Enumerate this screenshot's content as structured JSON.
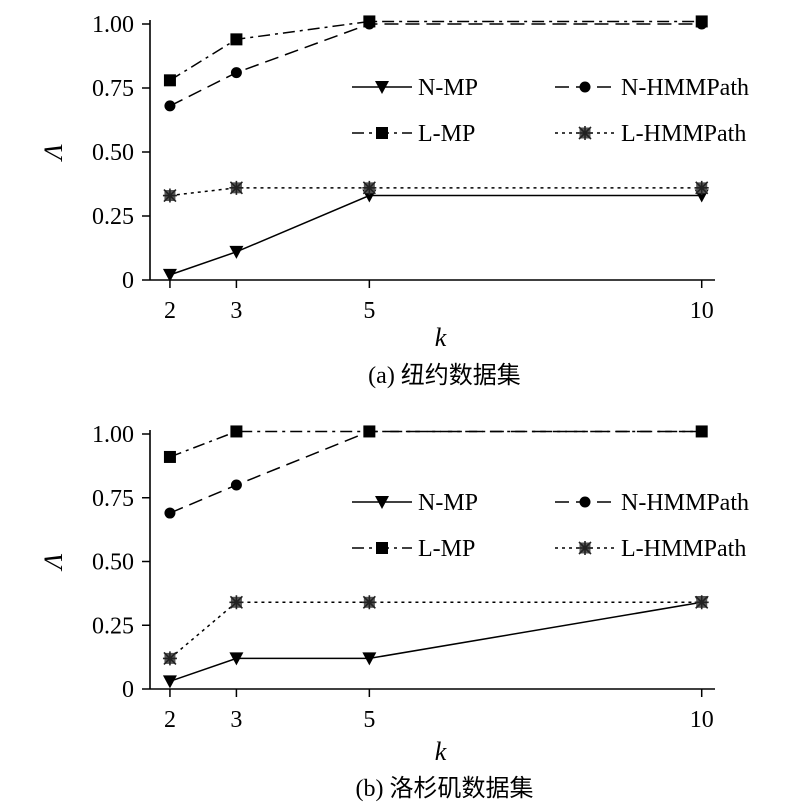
{
  "chart_data": [
    {
      "type": "line",
      "caption": "(a) 纽约数据集",
      "xlabel": "k",
      "ylabel": "Λ",
      "x": [
        2,
        3,
        5,
        10
      ],
      "x_ticks": [
        "2",
        "3",
        "5",
        "10"
      ],
      "y_ticks": [
        "0",
        "0.25",
        "0.50",
        "0.75",
        "1.00"
      ],
      "xlim": [
        1.7,
        10.2
      ],
      "ylim": [
        0,
        1.0
      ],
      "grid": false,
      "legend_position": "upper-right",
      "series": [
        {
          "name": "N-MP",
          "values": [
            0.02,
            0.11,
            0.33,
            0.33
          ],
          "marker": "triangle-down",
          "dash": "solid"
        },
        {
          "name": "N-HMMPath",
          "values": [
            0.68,
            0.81,
            1.0,
            1.0
          ],
          "marker": "circle",
          "dash": "dashed"
        },
        {
          "name": "L-MP",
          "values": [
            0.78,
            0.94,
            1.01,
            1.01
          ],
          "marker": "square",
          "dash": "dashdot"
        },
        {
          "name": "L-HMMPath",
          "values": [
            0.33,
            0.36,
            0.36,
            0.36
          ],
          "marker": "star",
          "dash": "dotted"
        }
      ]
    },
    {
      "type": "line",
      "caption": "(b) 洛杉矶数据集",
      "xlabel": "k",
      "ylabel": "Λ",
      "x": [
        2,
        3,
        5,
        10
      ],
      "x_ticks": [
        "2",
        "3",
        "5",
        "10"
      ],
      "y_ticks": [
        "0",
        "0.25",
        "0.50",
        "0.75",
        "1.00"
      ],
      "xlim": [
        1.7,
        10.2
      ],
      "ylim": [
        0,
        1.0
      ],
      "grid": false,
      "legend_position": "upper-right",
      "series": [
        {
          "name": "N-MP",
          "values": [
            0.03,
            0.12,
            0.12,
            0.34
          ],
          "marker": "triangle-down",
          "dash": "solid"
        },
        {
          "name": "N-HMMPath",
          "values": [
            0.69,
            0.8,
            1.01,
            1.01
          ],
          "marker": "circle",
          "dash": "dashed"
        },
        {
          "name": "L-MP",
          "values": [
            0.91,
            1.01,
            1.01,
            1.01
          ],
          "marker": "square",
          "dash": "dashdot"
        },
        {
          "name": "L-HMMPath",
          "values": [
            0.12,
            0.34,
            0.34,
            0.34
          ],
          "marker": "star",
          "dash": "dotted"
        }
      ]
    }
  ]
}
